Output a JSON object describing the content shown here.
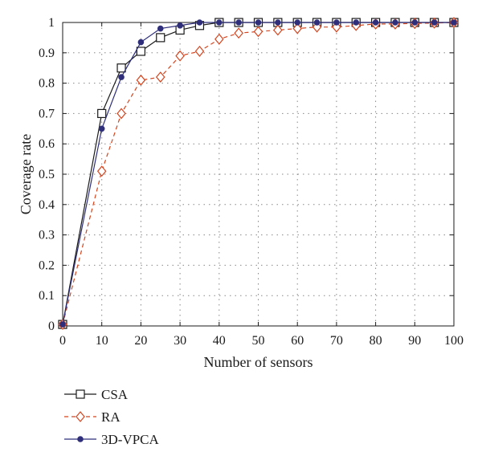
{
  "chart_data": {
    "type": "line",
    "xlabel": "Number of sensors",
    "ylabel": "Coverage rate",
    "xlim": [
      0,
      100
    ],
    "ylim": [
      0,
      1
    ],
    "xticks": [
      "0",
      "10",
      "20",
      "30",
      "40",
      "50",
      "60",
      "70",
      "80",
      "90",
      "100"
    ],
    "yticks": [
      "0",
      "0.1",
      "0.2",
      "0.3",
      "0.4",
      "0.5",
      "0.6",
      "0.7",
      "0.8",
      "0.9",
      "1"
    ],
    "grid": true,
    "legend": "below-left",
    "x": [
      0,
      10,
      15,
      20,
      25,
      30,
      35,
      40,
      45,
      50,
      55,
      60,
      65,
      70,
      75,
      80,
      85,
      90,
      95,
      100
    ],
    "series": [
      {
        "name": "CSA",
        "color": "#1a1a1a",
        "line_style": "solid",
        "marker": "open-square",
        "values": [
          0.005,
          0.7,
          0.85,
          0.905,
          0.95,
          0.975,
          0.99,
          1,
          1,
          1,
          1,
          1,
          1,
          1,
          1,
          1,
          1,
          1,
          1,
          1
        ]
      },
      {
        "name": "RA",
        "color": "#d4451f",
        "line_style": "dashed",
        "marker": "open-diamond",
        "values": [
          0.005,
          0.51,
          0.7,
          0.81,
          0.82,
          0.89,
          0.905,
          0.945,
          0.965,
          0.97,
          0.975,
          0.98,
          0.985,
          0.985,
          0.99,
          0.995,
          0.995,
          0.997,
          0.998,
          1
        ]
      },
      {
        "name": "3D-VPCA",
        "color": "#2e2e7a",
        "line_style": "solid",
        "marker": "filled-circle",
        "values": [
          0.005,
          0.65,
          0.82,
          0.935,
          0.98,
          0.99,
          1,
          1,
          1,
          1,
          1,
          1,
          1,
          1,
          1,
          1,
          1,
          1,
          1,
          1
        ]
      }
    ]
  }
}
